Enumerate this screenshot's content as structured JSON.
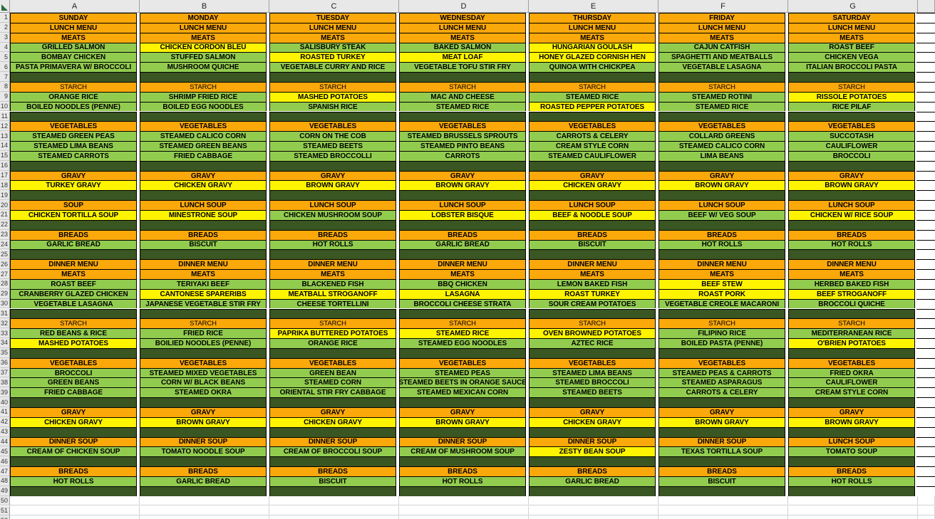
{
  "app": {
    "type": "spreadsheet",
    "description": "weekly lunch and dinner menu grid"
  },
  "colors": {
    "orange": "#FBA80A",
    "yellow": "#FFF400",
    "green": "#92CC4F",
    "dark_green": "#3A5622",
    "header_bg": "#E8E8E8",
    "header_border": "#9F9F9F",
    "cell_border": "#000000",
    "gridline": "#D2D2D2",
    "corner_triangle": "#2E6B3C",
    "text": "#000000"
  },
  "sheet": {
    "column_headers": [
      "A",
      "B",
      "C",
      "D",
      "E",
      "F",
      "G"
    ],
    "first_row_number": 1,
    "last_visible_row_number": 52,
    "rows": [
      {
        "n": 1,
        "type": "section",
        "labels": [
          "SUNDAY",
          "MONDAY",
          "TUESDAY",
          "WEDNESDAY",
          "THURSDAY",
          "FRIDAY",
          "SATURDAY"
        ]
      },
      {
        "n": 2,
        "type": "section",
        "labels": [
          "LUNCH MENU",
          "LUNCH MENU",
          "LUNCH MENU",
          "LUNCH MENU",
          "LUNCH MENU",
          "LUNCH MENU",
          "LUNCH MENU"
        ]
      },
      {
        "n": 3,
        "type": "section",
        "labels": [
          "MEATS",
          "MEATS",
          "MEATS",
          "MEATS",
          "MEATS",
          "MEATS",
          "MEATS"
        ]
      },
      {
        "n": 4,
        "type": "items",
        "cells": [
          [
            "GRILLED SALMON",
            "g"
          ],
          [
            "CHICKEN CORDON BLEU",
            "y"
          ],
          [
            "SALISBURY STEAK",
            "g"
          ],
          [
            "BAKED SALMON",
            "g"
          ],
          [
            "HUNGARIAN GOULASH",
            "y"
          ],
          [
            "CAJUN CATFISH",
            "g"
          ],
          [
            "ROAST BEEF",
            "g"
          ]
        ]
      },
      {
        "n": 5,
        "type": "items",
        "cells": [
          [
            "BOMBAY CHICKEN",
            "g"
          ],
          [
            "STUFFED SALMON",
            "g"
          ],
          [
            "ROASTED TURKEY",
            "y"
          ],
          [
            "MEAT LOAF",
            "y"
          ],
          [
            "HONEY GLAZED CORNISH HEN",
            "y"
          ],
          [
            "SPAGHETTI AND MEATBALLS",
            "g"
          ],
          [
            "CHICKEN VEGA",
            "g"
          ]
        ]
      },
      {
        "n": 6,
        "type": "items",
        "cells": [
          [
            "PASTA PRIMAVERA W/ BROCCOLI",
            "g"
          ],
          [
            "MUSHROOM QUICHE",
            "g"
          ],
          [
            "VEGETABLE CURRY AND RICE",
            "g"
          ],
          [
            "VEGETABLE TOFU STIR FRY",
            "g"
          ],
          [
            "QUINOA WITH CHICKPEA",
            "g"
          ],
          [
            "VEGETABLE LASAGNA",
            "g"
          ],
          [
            "ITALIAN BROCCOLI PASTA",
            "g"
          ]
        ]
      },
      {
        "n": 7,
        "type": "blank"
      },
      {
        "n": 8,
        "type": "section",
        "small": true,
        "labels": [
          "STARCH",
          "STARCH",
          "STARCH",
          "STARCH",
          "STARCH",
          "STARCH",
          "STARCH"
        ]
      },
      {
        "n": 9,
        "type": "items",
        "cells": [
          [
            "ORANGE RICE",
            "g"
          ],
          [
            "SHRIMP FRIED RICE",
            "g"
          ],
          [
            "MASHED POTATOES",
            "y"
          ],
          [
            "MAC AND CHEESE",
            "g"
          ],
          [
            "STEAMED RICE",
            "g"
          ],
          [
            "STEAMED ROTINI",
            "g"
          ],
          [
            "RISSOLE POTATOES",
            "y"
          ]
        ]
      },
      {
        "n": 10,
        "type": "items",
        "cells": [
          [
            "BOILED NOODLES (PENNE)",
            "g"
          ],
          [
            "BOILED EGG NOODLES",
            "g"
          ],
          [
            "SPANISH RICE",
            "g"
          ],
          [
            "STEAMED RICE",
            "g"
          ],
          [
            "ROASTED PEPPER POTATOES",
            "y"
          ],
          [
            "STEAMED RICE",
            "g"
          ],
          [
            "RICE PILAF",
            "g"
          ]
        ]
      },
      {
        "n": 11,
        "type": "blank"
      },
      {
        "n": 12,
        "type": "section",
        "labels": [
          "VEGETABLES",
          "VEGETABLES",
          "VEGETABLES",
          "VEGETABLES",
          "VEGETABLES",
          "VEGETABLES",
          "VEGETABLES"
        ]
      },
      {
        "n": 13,
        "type": "items",
        "cells": [
          [
            "STEAMED GREEN PEAS",
            "g"
          ],
          [
            "STEAMED CALICO CORN",
            "g"
          ],
          [
            "CORN ON THE COB",
            "g"
          ],
          [
            "STEAMED BRUSSELS SPROUTS",
            "g"
          ],
          [
            "CARROTS & CELERY",
            "g"
          ],
          [
            "COLLARD GREENS",
            "g"
          ],
          [
            "SUCCOTASH",
            "g"
          ]
        ]
      },
      {
        "n": 14,
        "type": "items",
        "cells": [
          [
            "STEAMED LIMA BEANS",
            "g"
          ],
          [
            "STEAMED GREEN BEANS",
            "g"
          ],
          [
            "STEAMED BEETS",
            "g"
          ],
          [
            "STEAMED PINTO BEANS",
            "g"
          ],
          [
            "CREAM STYLE CORN",
            "g"
          ],
          [
            "STEAMED CALICO CORN",
            "g"
          ],
          [
            "CAULIFLOWER",
            "g"
          ]
        ]
      },
      {
        "n": 15,
        "type": "items",
        "cells": [
          [
            "STEAMED CARROTS",
            "g"
          ],
          [
            "FRIED CABBAGE",
            "g"
          ],
          [
            "STEAMED BROCCOLLI",
            "g"
          ],
          [
            "CARROTS",
            "g"
          ],
          [
            "STEAMED CAULIFLOWER",
            "g"
          ],
          [
            "LIMA BEANS",
            "g"
          ],
          [
            "BROCCOLI",
            "g"
          ]
        ]
      },
      {
        "n": 16,
        "type": "blank"
      },
      {
        "n": 17,
        "type": "section",
        "labels": [
          "GRAVY",
          "GRAVY",
          "GRAVY",
          "GRAVY",
          "GRAVY",
          "GRAVY",
          "GRAVY"
        ]
      },
      {
        "n": 18,
        "type": "items",
        "cells": [
          [
            "TURKEY GRAVY",
            "y"
          ],
          [
            "CHICKEN GRAVY",
            "y"
          ],
          [
            "BROWN GRAVY",
            "y"
          ],
          [
            "BROWN GRAVY",
            "y"
          ],
          [
            "CHICKEN GRAVY",
            "y"
          ],
          [
            "BROWN GRAVY",
            "y"
          ],
          [
            "BROWN GRAVY",
            "y"
          ]
        ]
      },
      {
        "n": 19,
        "type": "blank"
      },
      {
        "n": 20,
        "type": "section",
        "labels": [
          "SOUP",
          "LUNCH SOUP",
          "LUNCH SOUP",
          "LUNCH SOUP",
          "LUNCH SOUP",
          "LUNCH SOUP",
          "LUNCH SOUP"
        ]
      },
      {
        "n": 21,
        "type": "items",
        "cells": [
          [
            "CHICKEN TORTILLA SOUP",
            "y"
          ],
          [
            "MINESTRONE SOUP",
            "y"
          ],
          [
            "CHICKEN MUSHROOM SOUP",
            "g"
          ],
          [
            "LOBSTER BISQUE",
            "y"
          ],
          [
            "BEEF & NOODLE SOUP",
            "y"
          ],
          [
            "BEEF W/ VEG SOUP",
            "g"
          ],
          [
            "CHICKEN W/ RICE SOUP",
            "y"
          ]
        ]
      },
      {
        "n": 22,
        "type": "blank"
      },
      {
        "n": 23,
        "type": "section",
        "labels": [
          "BREADS",
          "BREADS",
          "BREADS",
          "BREADS",
          "BREADS",
          "BREADS",
          "BREADS"
        ]
      },
      {
        "n": 24,
        "type": "items",
        "cells": [
          [
            "GARLIC BREAD",
            "g"
          ],
          [
            "BISCUIT",
            "g"
          ],
          [
            "HOT ROLLS",
            "g"
          ],
          [
            "GARLIC BREAD",
            "g"
          ],
          [
            "BISCUIT",
            "g"
          ],
          [
            "HOT ROLLS",
            "g"
          ],
          [
            "HOT ROLLS",
            "g"
          ]
        ]
      },
      {
        "n": 25,
        "type": "blank"
      },
      {
        "n": 26,
        "type": "section",
        "labels": [
          "DINNER MENU",
          "DINNER MENU",
          "DINNER MENU",
          "DINNER MENU",
          "DINNER MENU",
          "DINNER MENU",
          "DINNER MENU"
        ]
      },
      {
        "n": 27,
        "type": "section",
        "labels": [
          "MEATS",
          "MEATS",
          "MEATS",
          "MEATS",
          "MEATS",
          "MEATS",
          "MEATS"
        ]
      },
      {
        "n": 28,
        "type": "items",
        "cells": [
          [
            "ROAST BEEF",
            "g"
          ],
          [
            "TERIYAKI BEEF",
            "g"
          ],
          [
            "BLACKENED FISH",
            "g"
          ],
          [
            "BBQ CHICKEN",
            "g"
          ],
          [
            "LEMON BAKED FISH",
            "g"
          ],
          [
            "BEEF STEW",
            "y"
          ],
          [
            "HERBED BAKED FISH",
            "g"
          ]
        ]
      },
      {
        "n": 29,
        "type": "items",
        "cells": [
          [
            "CRANBERRY GLAZED CHICKEN",
            "g"
          ],
          [
            "CANTONESE SPARERIBS",
            "y"
          ],
          [
            "MEATBALL STROGANOFF",
            "y"
          ],
          [
            "LASAGNA",
            "y"
          ],
          [
            "ROAST TURKEY",
            "y"
          ],
          [
            "ROAST PORK",
            "y"
          ],
          [
            "BEEF STROGANOFF",
            "y"
          ]
        ]
      },
      {
        "n": 30,
        "type": "items",
        "cells": [
          [
            "VEGETABLE LASAGNA",
            "g"
          ],
          [
            "JAPANESE VEGETABLE STIR FRY",
            "g"
          ],
          [
            "CHEESE TORTELLINI",
            "g"
          ],
          [
            "BROCCOLI CHEESE STRATA",
            "g"
          ],
          [
            "SOUR CREAM POTATOES",
            "g"
          ],
          [
            "VEGETABLE CREOLE MACARONI",
            "g"
          ],
          [
            "BROCCOLI QUICHE",
            "g"
          ]
        ]
      },
      {
        "n": 31,
        "type": "blank"
      },
      {
        "n": 32,
        "type": "section",
        "small": true,
        "labels": [
          "STARCH",
          "STARCH",
          "STARCH",
          "STARCH",
          "STARCH",
          "STARCH",
          "STARCH"
        ]
      },
      {
        "n": 33,
        "type": "items",
        "cells": [
          [
            "RED BEANS & RICE",
            "g"
          ],
          [
            "FRIED RICE",
            "g"
          ],
          [
            "PAPRIKA BUTTERED POTATOES",
            "y"
          ],
          [
            "STEAMED RICE",
            "y"
          ],
          [
            "OVEN BROWNED POTATOES",
            "y"
          ],
          [
            "FILIPINO RICE",
            "g"
          ],
          [
            "MEDITERRANEAN RICE",
            "g"
          ]
        ]
      },
      {
        "n": 34,
        "type": "items",
        "cells": [
          [
            "MASHED POTATOES",
            "y"
          ],
          [
            "BOILIED NOODLES (PENNE)",
            "g"
          ],
          [
            "ORANGE RICE",
            "g"
          ],
          [
            "STEAMED EGG NOODLES",
            "g"
          ],
          [
            "AZTEC RICE",
            "g"
          ],
          [
            "BOILED PASTA (PENNE)",
            "g"
          ],
          [
            "O'BRIEN POTATOES",
            "y"
          ]
        ]
      },
      {
        "n": 35,
        "type": "blank"
      },
      {
        "n": 36,
        "type": "section",
        "labels": [
          "VEGETABLES",
          "VEGETABLES",
          "VEGETABLES",
          "VEGETABLES",
          "VEGETABLES",
          "VEGETABLES",
          "VEGETABLES"
        ]
      },
      {
        "n": 37,
        "type": "items",
        "cells": [
          [
            "BROCCOLI",
            "g"
          ],
          [
            "STEAMED MIXED VEGETABLES",
            "g"
          ],
          [
            "GREEN BEAN",
            "g"
          ],
          [
            "STEAMED PEAS",
            "g"
          ],
          [
            "STEAMED LIMA BEANS",
            "g"
          ],
          [
            "STEAMED PEAS & CARROTS",
            "g"
          ],
          [
            "FRIED OKRA",
            "g"
          ]
        ]
      },
      {
        "n": 38,
        "type": "items",
        "cells": [
          [
            "GREEN BEANS",
            "g"
          ],
          [
            "CORN W/ BLACK BEANS",
            "g"
          ],
          [
            "STEAMED CORN",
            "g"
          ],
          [
            "STEAMED BEETS IN ORANGE SAUCE",
            "g"
          ],
          [
            "STEAMED BROCCOLI",
            "g"
          ],
          [
            "STEAMED ASPARAGUS",
            "g"
          ],
          [
            "CAULIFLOWER",
            "g"
          ]
        ]
      },
      {
        "n": 39,
        "type": "items",
        "cells": [
          [
            "FRIED CABBAGE",
            "g"
          ],
          [
            "STEAMED OKRA",
            "g"
          ],
          [
            "ORIENTAL STIR FRY CABBAGE",
            "g"
          ],
          [
            "STEAMED MEXICAN CORN",
            "g"
          ],
          [
            "STEAMED BEETS",
            "g"
          ],
          [
            "CARROTS & CELERY",
            "g"
          ],
          [
            "CREAM STYLE CORN",
            "g"
          ]
        ]
      },
      {
        "n": 40,
        "type": "blank"
      },
      {
        "n": 41,
        "type": "section",
        "labels": [
          "GRAVY",
          "GRAVY",
          "GRAVY",
          "GRAVY",
          "GRAVY",
          "GRAVY",
          "GRAVY"
        ]
      },
      {
        "n": 42,
        "type": "items",
        "cells": [
          [
            "CHICKEN GRAVY",
            "y"
          ],
          [
            "BROWN GRAVY",
            "y"
          ],
          [
            "CHICKEN GRAVY",
            "y"
          ],
          [
            "BROWN GRAVY",
            "y"
          ],
          [
            "CHICKEN GRAVY",
            "y"
          ],
          [
            "BROWN GRAVY",
            "y"
          ],
          [
            "BROWN GRAVY",
            "y"
          ]
        ]
      },
      {
        "n": 43,
        "type": "blank"
      },
      {
        "n": 44,
        "type": "section",
        "labels": [
          "DINNER SOUP",
          "DINNER SOUP",
          "DINNER SOUP",
          "DINNER SOUP",
          "DINNER SOUP",
          "DINNER SOUP",
          "LUNCH SOUP"
        ]
      },
      {
        "n": 45,
        "type": "items",
        "cells": [
          [
            "CREAM OF CHICKEN SOUP",
            "g"
          ],
          [
            "TOMATO NOODLE SOUP",
            "g"
          ],
          [
            "CREAM OF BROCCOLI SOUP",
            "g"
          ],
          [
            "CREAM OF MUSHROOM SOUP",
            "g"
          ],
          [
            "ZESTY BEAN SOUP",
            "y"
          ],
          [
            "TEXAS TORTILLA SOUP",
            "g"
          ],
          [
            "TOMATO SOUP",
            "g"
          ]
        ]
      },
      {
        "n": 46,
        "type": "blank"
      },
      {
        "n": 47,
        "type": "section",
        "labels": [
          "BREADS",
          "BREADS",
          "BREADS",
          "BREADS",
          "BREADS",
          "BREADS",
          "BREADS"
        ]
      },
      {
        "n": 48,
        "type": "items",
        "cells": [
          [
            "HOT ROLLS",
            "g"
          ],
          [
            "GARLIC BREAD",
            "g"
          ],
          [
            "BISCUIT",
            "g"
          ],
          [
            "HOT ROLLS",
            "g"
          ],
          [
            "GARLIC BREAD",
            "g"
          ],
          [
            "BISCUIT",
            "g"
          ],
          [
            "HOT ROLLS",
            "g"
          ]
        ]
      },
      {
        "n": 49,
        "type": "blank"
      }
    ]
  }
}
